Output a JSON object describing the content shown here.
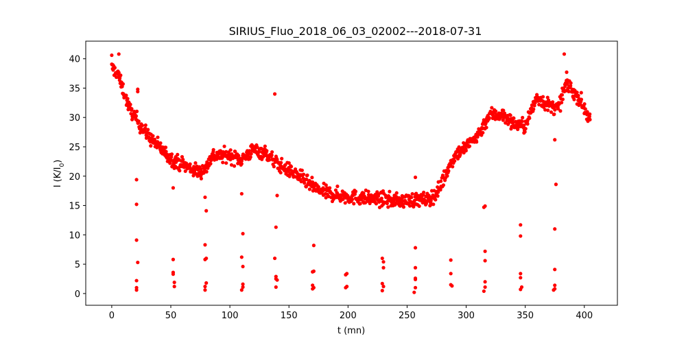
{
  "chart_data": {
    "type": "scatter",
    "title": "SIRIUS_Fluo_2018_06_03_02002---2018-07-31",
    "xlabel": "t (mn)",
    "ylabel_main": "I (K/I",
    "ylabel_sub": "0",
    "ylabel_close": ")",
    "xlim": [
      -22,
      428
    ],
    "ylim": [
      -2,
      43
    ],
    "xticks": [
      0,
      50,
      100,
      150,
      200,
      250,
      300,
      350,
      400
    ],
    "yticks": [
      0,
      5,
      10,
      15,
      20,
      25,
      30,
      35,
      40
    ],
    "color": "#ff0000",
    "grid": false,
    "trend": [
      [
        0,
        38.5
      ],
      [
        5,
        37.5
      ],
      [
        10,
        34.5
      ],
      [
        15,
        31.5
      ],
      [
        20,
        30
      ],
      [
        25,
        28.5
      ],
      [
        30,
        27
      ],
      [
        40,
        25
      ],
      [
        50,
        23
      ],
      [
        60,
        22
      ],
      [
        70,
        21
      ],
      [
        75,
        20.8
      ],
      [
        80,
        21.5
      ],
      [
        85,
        23.5
      ],
      [
        100,
        23.5
      ],
      [
        110,
        22.8
      ],
      [
        120,
        24.5
      ],
      [
        130,
        24
      ],
      [
        138,
        22.5
      ],
      [
        145,
        21.5
      ],
      [
        155,
        20.5
      ],
      [
        165,
        19
      ],
      [
        175,
        17.5
      ],
      [
        190,
        16.8
      ],
      [
        200,
        16.5
      ],
      [
        220,
        16.2
      ],
      [
        240,
        15.8
      ],
      [
        260,
        16
      ],
      [
        268,
        16
      ],
      [
        275,
        17
      ],
      [
        282,
        20
      ],
      [
        290,
        23.5
      ],
      [
        300,
        25
      ],
      [
        310,
        27
      ],
      [
        320,
        30.5
      ],
      [
        330,
        30.5
      ],
      [
        340,
        29
      ],
      [
        350,
        28.5
      ],
      [
        360,
        33.5
      ],
      [
        370,
        32
      ],
      [
        378,
        31.5
      ],
      [
        385,
        36
      ],
      [
        390,
        34.5
      ],
      [
        395,
        33.5
      ],
      [
        400,
        31.5
      ],
      [
        405,
        29.5
      ]
    ],
    "outliers": [
      [
        21,
        19.4
      ],
      [
        21,
        15.2
      ],
      [
        21,
        9.1
      ],
      [
        22,
        5.3
      ],
      [
        21,
        2.2
      ],
      [
        21,
        1
      ],
      [
        21,
        0.6
      ],
      [
        22,
        34.8
      ],
      [
        22,
        34.4
      ],
      [
        52,
        18
      ],
      [
        52,
        5.8
      ],
      [
        52,
        3.6
      ],
      [
        52,
        3.3
      ],
      [
        53,
        1.9
      ],
      [
        53,
        1.2
      ],
      [
        79,
        16.4
      ],
      [
        80,
        14.1
      ],
      [
        79,
        8.3
      ],
      [
        80,
        6
      ],
      [
        79,
        5.8
      ],
      [
        80,
        1.8
      ],
      [
        79,
        1.2
      ],
      [
        79,
        0.6
      ],
      [
        110,
        17
      ],
      [
        111,
        10.2
      ],
      [
        110,
        6.2
      ],
      [
        111,
        4.6
      ],
      [
        111,
        1.6
      ],
      [
        111,
        1.1
      ],
      [
        110,
        0.6
      ],
      [
        138,
        34
      ],
      [
        139,
        11.3
      ],
      [
        140,
        16.7
      ],
      [
        138,
        6
      ],
      [
        139,
        2.9
      ],
      [
        139,
        2.5
      ],
      [
        140,
        2.3
      ],
      [
        139,
        1.1
      ],
      [
        171,
        8.2
      ],
      [
        170,
        3.7
      ],
      [
        171,
        3.8
      ],
      [
        170,
        1.4
      ],
      [
        171,
        1
      ],
      [
        170,
        0.8
      ],
      [
        198,
        3.2
      ],
      [
        199,
        3.4
      ],
      [
        199,
        1.2
      ],
      [
        198,
        1
      ],
      [
        229,
        6
      ],
      [
        230,
        5.4
      ],
      [
        230,
        4.4
      ],
      [
        229,
        1.7
      ],
      [
        230,
        1.2
      ],
      [
        229,
        0.5
      ],
      [
        257,
        19.8
      ],
      [
        257,
        7.8
      ],
      [
        257,
        4.4
      ],
      [
        257,
        2.6
      ],
      [
        257,
        2.4
      ],
      [
        257,
        1
      ],
      [
        256,
        0.2
      ],
      [
        287,
        5.7
      ],
      [
        287,
        3.4
      ],
      [
        287,
        1.5
      ],
      [
        288,
        1.3
      ],
      [
        315,
        14.7
      ],
      [
        316,
        14.9
      ],
      [
        316,
        7.2
      ],
      [
        316,
        5.6
      ],
      [
        316,
        2
      ],
      [
        316,
        1.1
      ],
      [
        315,
        0.4
      ],
      [
        346,
        11.7
      ],
      [
        346,
        9.8
      ],
      [
        346,
        3.4
      ],
      [
        346,
        2.7
      ],
      [
        347,
        1.1
      ],
      [
        346,
        0.7
      ],
      [
        375,
        26.2
      ],
      [
        376,
        18.6
      ],
      [
        375,
        11
      ],
      [
        375,
        4.1
      ],
      [
        375,
        1.4
      ],
      [
        375,
        0.8
      ],
      [
        374,
        0.6
      ],
      [
        383,
        40.8
      ],
      [
        0,
        40.6
      ],
      [
        6,
        40.8
      ]
    ]
  }
}
